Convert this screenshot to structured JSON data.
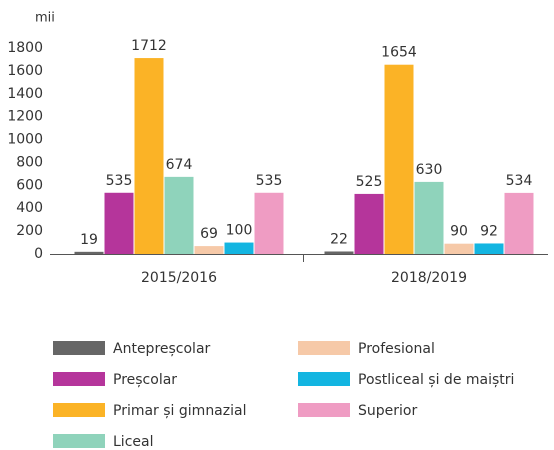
{
  "chart_data": {
    "type": "bar",
    "ylabel": "mii",
    "categories": [
      "2015/2016",
      "2018/2019"
    ],
    "series": [
      {
        "name": "Antepreșcolar",
        "color": "#666666",
        "values": [
          19,
          22
        ]
      },
      {
        "name": "Preșcolar",
        "color": "#b5359b",
        "values": [
          535,
          525
        ]
      },
      {
        "name": "Primar și gimnazial",
        "color": "#fbb326",
        "values": [
          1712,
          1654
        ]
      },
      {
        "name": "Liceal",
        "color": "#8fd3bb",
        "values": [
          674,
          630
        ]
      },
      {
        "name": "Profesional",
        "color": "#f6c9a8",
        "values": [
          69,
          90
        ]
      },
      {
        "name": "Postliceal și de maiștri",
        "color": "#13b5e1",
        "values": [
          100,
          92
        ]
      },
      {
        "name": "Superior",
        "color": "#ef9cc3",
        "values": [
          535,
          534
        ]
      }
    ],
    "ylim": [
      0,
      1800
    ],
    "yticks": [
      0,
      200,
      400,
      600,
      800,
      1000,
      1200,
      1400,
      1600,
      1800
    ],
    "grid": false
  }
}
